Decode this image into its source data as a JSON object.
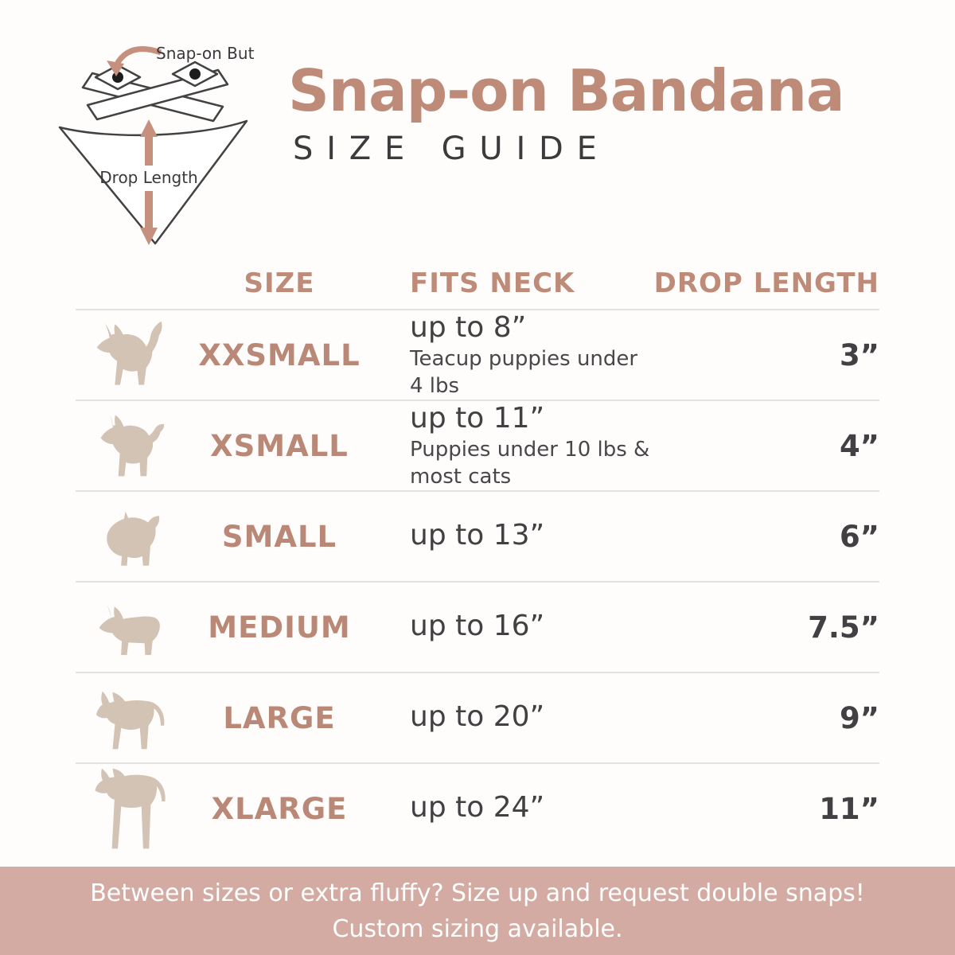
{
  "colors": {
    "accent": "#bf8b79",
    "size_label": "#b98877",
    "banner_bg": "#d4aba2",
    "text_dark": "#414042",
    "dog_silhouette": "#d2c3b4",
    "divider": "#e4e1df"
  },
  "diagram": {
    "snap_label": "Snap-on Buttons",
    "drop_label": "Drop Length"
  },
  "header": {
    "title": "Snap-on Bandana",
    "subtitle": "SIZE GUIDE"
  },
  "table": {
    "columns": [
      "SIZE",
      "FITS NECK",
      "DROP LENGTH"
    ],
    "rows": [
      {
        "icon": "chihuahua-icon",
        "size": "XXSMALL",
        "fits_neck": "up to 8”",
        "note": "Teacup puppies under 4 lbs",
        "drop_length": "3”"
      },
      {
        "icon": "yorkie-icon",
        "size": "XSMALL",
        "fits_neck": "up to 11”",
        "note": "Puppies under 10 lbs & most cats",
        "drop_length": "4”"
      },
      {
        "icon": "pomeranian-icon",
        "size": "SMALL",
        "fits_neck": "up to 13”",
        "note": "",
        "drop_length": "6”"
      },
      {
        "icon": "corgi-icon",
        "size": "MEDIUM",
        "fits_neck": "up to 16”",
        "note": "",
        "drop_length": "7.5”"
      },
      {
        "icon": "pointer-icon",
        "size": "LARGE",
        "fits_neck": "up to 20”",
        "note": "",
        "drop_length": "9”"
      },
      {
        "icon": "great-dane-icon",
        "size": "XLARGE",
        "fits_neck": "up to 24”",
        "note": "",
        "drop_length": "11”"
      }
    ]
  },
  "banner": {
    "line1": "Between sizes or extra fluffy? Size up and request double snaps!",
    "line2": "Custom sizing available."
  }
}
